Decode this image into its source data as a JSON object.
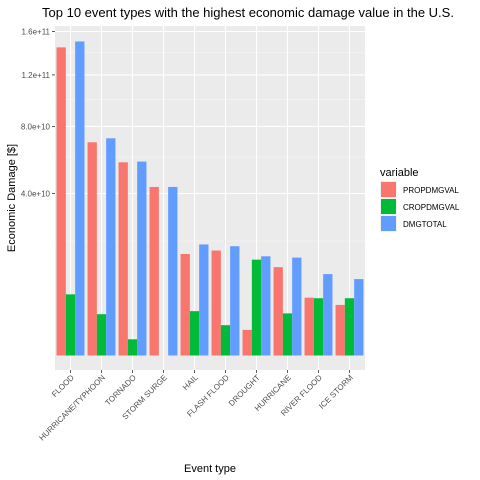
{
  "chart_data": {
    "type": "bar",
    "title": "Top 10 event types with the highest economic damage value in the U.S.",
    "xlabel": "Event type",
    "ylabel": "Economic Damage [$]",
    "y_scale": "sqrt",
    "ylim": [
      0,
      160000000000
    ],
    "yticks": [
      {
        "value": 40000000000,
        "label": "4.0e+10"
      },
      {
        "value": 80000000000,
        "label": "8.0e+10"
      },
      {
        "value": 120000000000,
        "label": "1.2e+11"
      },
      {
        "value": 160000000000,
        "label": "1.6e+11"
      }
    ],
    "grid": true,
    "legend_position": "right",
    "legend_title": "variable",
    "categories": [
      "FLOOD",
      "HURRICANE/TYPHOON",
      "TORNADO",
      "STORM SURGE",
      "HAIL",
      "FLASH FLOOD",
      "DROUGHT",
      "HURRICANE",
      "RIVER FLOOD",
      "ICE STORM"
    ],
    "series": [
      {
        "name": "PROPDMGVAL",
        "color": "#F8766D",
        "values": [
          144700000000,
          69300000000,
          56900000000,
          43300000000,
          15700000000,
          16800000000,
          1000000000,
          11900000000,
          5100000000,
          3900000000
        ]
      },
      {
        "name": "CROPDMGVAL",
        "color": "#00BA38",
        "values": [
          5700000000,
          2600000000,
          400000000,
          0,
          3000000000,
          1400000000,
          14000000000,
          2700000000,
          5000000000,
          5000000000
        ]
      },
      {
        "name": "DMGTOTAL",
        "color": "#619CFF",
        "values": [
          150300000000,
          71900000000,
          57300000000,
          43300000000,
          18800000000,
          18200000000,
          15000000000,
          14600000000,
          10100000000,
          8900000000
        ]
      }
    ]
  }
}
